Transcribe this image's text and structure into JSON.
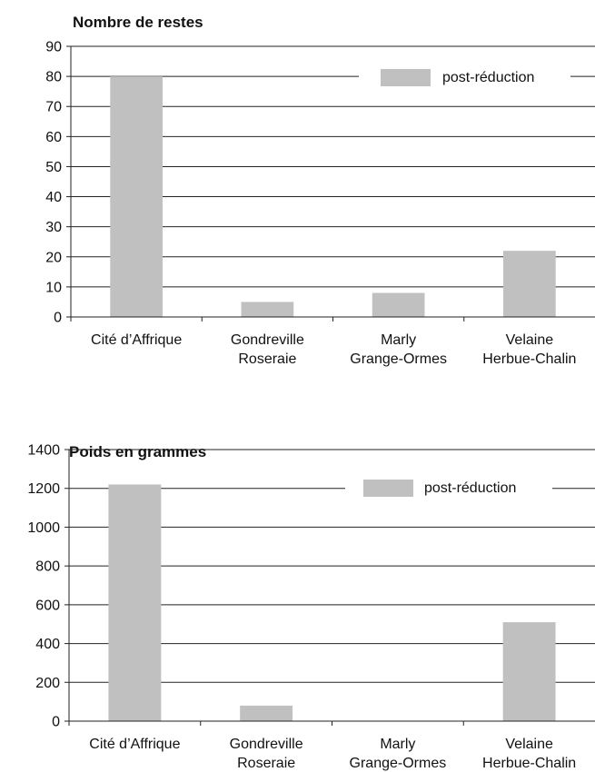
{
  "chart_data": [
    {
      "type": "bar",
      "title": "Nombre de restes",
      "categories": [
        [
          "Cité d’Affrique"
        ],
        [
          "Gondreville",
          "Roseraie"
        ],
        [
          "Marly",
          "Grange-Ormes"
        ],
        [
          "Velaine",
          "Herbue-Chalin"
        ]
      ],
      "series": [
        {
          "name": "post-réduction",
          "values": [
            80,
            5,
            8,
            22
          ]
        }
      ],
      "ylim": [
        0,
        90
      ],
      "yticks": [
        0,
        10,
        20,
        30,
        40,
        50,
        60,
        70,
        80,
        90
      ],
      "grid": true,
      "legend": "top-right",
      "colors": {
        "bar": "#c0c0c0",
        "grid": "#222222",
        "axis": "#222222"
      }
    },
    {
      "type": "bar",
      "title": "Poids en grammes",
      "categories": [
        [
          "Cité d’Affrique"
        ],
        [
          "Gondreville",
          "Roseraie"
        ],
        [
          "Marly",
          "Grange-Ormes"
        ],
        [
          "Velaine",
          "Herbue-Chalin"
        ]
      ],
      "series": [
        {
          "name": "post-réduction",
          "values": [
            1220,
            80,
            0,
            510
          ]
        }
      ],
      "ylim": [
        0,
        1400
      ],
      "yticks": [
        0,
        200,
        400,
        600,
        800,
        1000,
        1200,
        1400
      ],
      "grid": true,
      "legend": "top-right",
      "colors": {
        "bar": "#c0c0c0",
        "grid": "#222222",
        "axis": "#222222"
      }
    }
  ]
}
